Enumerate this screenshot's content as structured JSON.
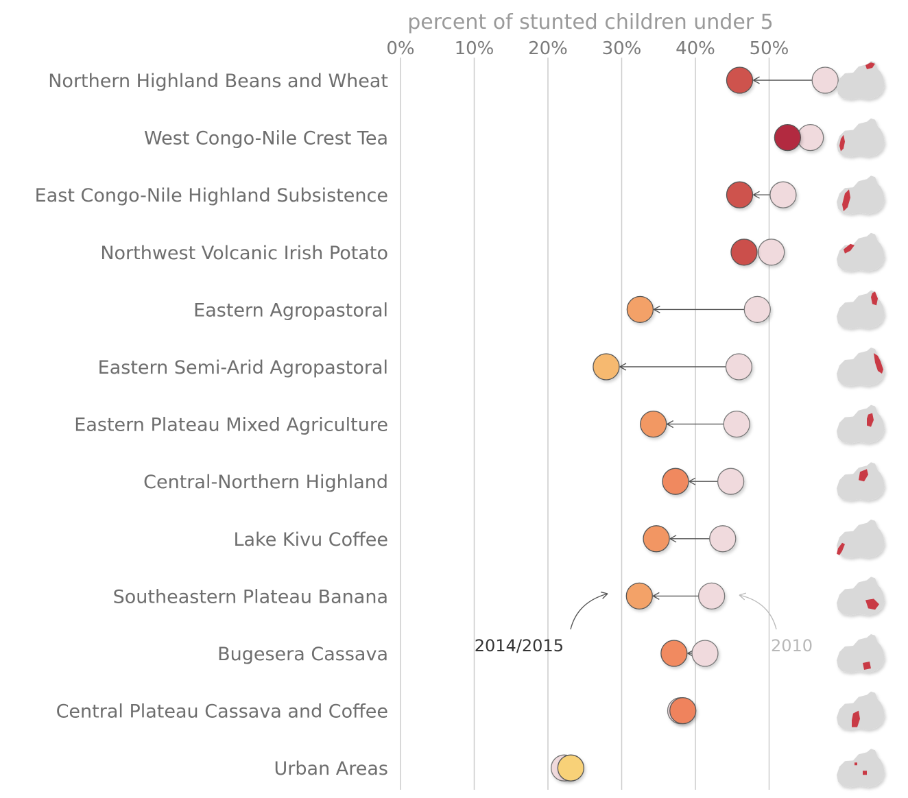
{
  "chart_data": {
    "type": "dot-arrow",
    "title": "percent of stunted children under 5",
    "x_ticks": [
      "0%",
      "10%",
      "20%",
      "30%",
      "40%",
      "50%"
    ],
    "xlim": [
      0,
      50
    ],
    "grid": true,
    "categories": [
      "Northern Highland Beans and Wheat",
      "West Congo-Nile Crest Tea",
      "East Congo-Nile Highland Subsistence",
      "Northwest Volcanic Irish Potato",
      "Eastern Agropastoral",
      "Eastern Semi-Arid Agropastoral",
      "Eastern Plateau Mixed Agriculture",
      "Central-Northern Highland",
      "Lake Kivu Coffee",
      "Southeastern Plateau Banana",
      "Bugesera Cassava",
      "Central Plateau Cassava and Coffee",
      "Urban Areas"
    ],
    "series": [
      {
        "name": "2010",
        "values": [
          57.6,
          55.6,
          51.9,
          50.3,
          48.4,
          45.9,
          45.6,
          44.8,
          43.7,
          42.2,
          41.3,
          38.0,
          22.2
        ]
      },
      {
        "name": "2014/2015",
        "values": [
          46.0,
          52.5,
          46.0,
          46.6,
          32.5,
          27.9,
          34.3,
          37.3,
          34.7,
          32.4,
          37.1,
          38.3,
          23.1
        ]
      }
    ],
    "annotations": [
      {
        "text": "2014/2015",
        "points_to": "2014/2015"
      },
      {
        "text": "2010",
        "points_to": "2010"
      }
    ],
    "colors": {
      "marker_2010": "#f0dadd",
      "color_scale_low": "#f9d77a",
      "color_scale_mid": "#f0855e",
      "color_scale_high": "#b0273f",
      "map_base": "#d9d9d9",
      "map_highlight": "#c93a45"
    }
  }
}
